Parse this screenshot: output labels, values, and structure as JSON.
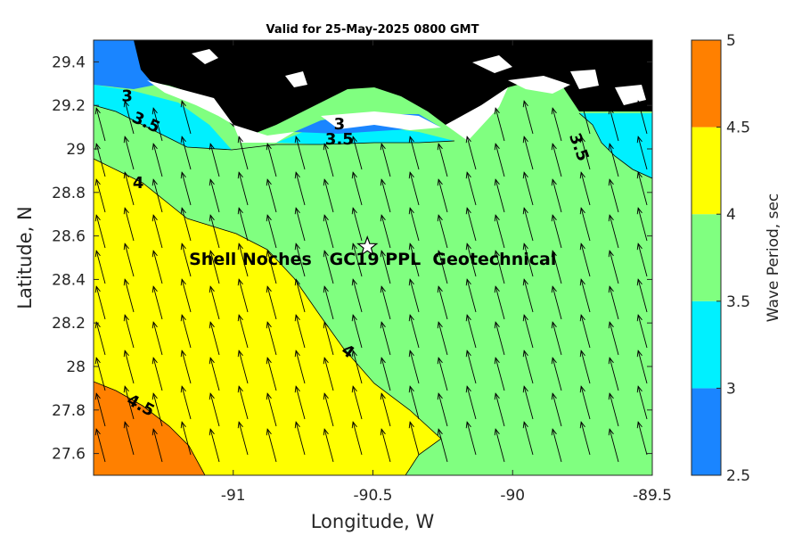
{
  "title": "Valid for 25-May-2025 0800 GMT",
  "xlabel": "Longitude, W",
  "ylabel": "Latitude, N",
  "xlim": [
    -91.5,
    -89.5
  ],
  "ylim": [
    27.5,
    29.5
  ],
  "xticks": [
    -91,
    -90.5,
    -90,
    -89.5
  ],
  "xtick_labels": [
    "-91",
    "-90.5",
    "-90",
    "-89.5"
  ],
  "yticks": [
    27.6,
    27.8,
    28,
    28.2,
    28.4,
    28.6,
    28.8,
    29,
    29.2,
    29.4
  ],
  "ytick_labels": [
    "27.6",
    "27.8",
    "28",
    "28.2",
    "28.4",
    "28.6",
    "28.8",
    "29",
    "29.2",
    "29.4"
  ],
  "colorbar": {
    "label": "Wave Period, sec",
    "levels": [
      2.5,
      3,
      3.5,
      4,
      4.5,
      5
    ],
    "tick_labels": [
      "2.5",
      "3",
      "3.5",
      "4",
      "4.5",
      "5"
    ],
    "colors": [
      "#1a85ff",
      "#00f0ff",
      "#80ff80",
      "#ffff00",
      "#ff8000"
    ]
  },
  "land_color": "#000000",
  "site": {
    "label": "Shell Noches   GC19 PPL  Geotechnical",
    "lon": -90.52,
    "lat": 28.55,
    "marker": "star-icon"
  },
  "contour_labels": [
    {
      "text": "3",
      "lon": -91.38,
      "lat": 29.22,
      "angle": 0
    },
    {
      "text": "3.5",
      "lon": -91.32,
      "lat": 29.1,
      "angle": 25
    },
    {
      "text": "4",
      "lon": -91.34,
      "lat": 28.82,
      "angle": 0
    },
    {
      "text": "3",
      "lon": -90.62,
      "lat": 29.09,
      "angle": 0
    },
    {
      "text": "3.5",
      "lon": -90.62,
      "lat": 29.02,
      "angle": 0
    },
    {
      "text": "3.5",
      "lon": -89.78,
      "lat": 29.0,
      "angle": 70
    },
    {
      "text": "4",
      "lon": -90.6,
      "lat": 28.05,
      "angle": 35
    },
    {
      "text": "4.5",
      "lon": -91.34,
      "lat": 27.8,
      "angle": 28
    }
  ],
  "vector_field": {
    "direction": "toward NNW",
    "description": "wave direction arrows"
  }
}
